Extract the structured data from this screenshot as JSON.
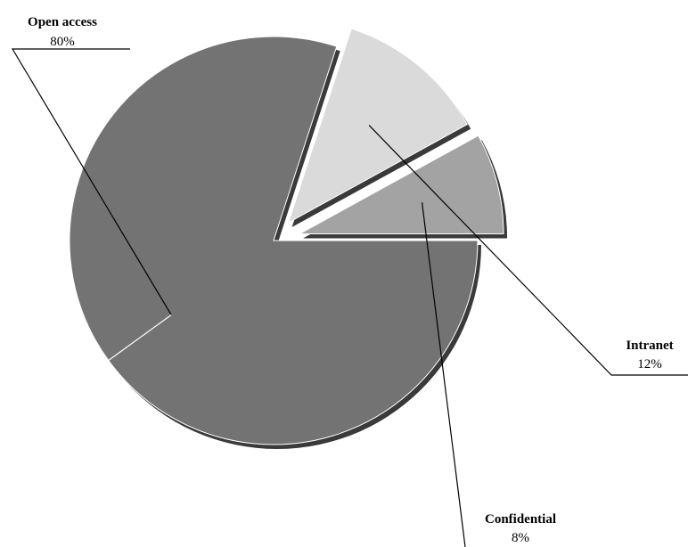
{
  "chart_data": {
    "type": "pie",
    "exploded": true,
    "shadow": true,
    "slices": [
      {
        "label": "Open access",
        "value": 80,
        "value_text": "80%",
        "color": "#737373"
      },
      {
        "label": "Intranet",
        "value": 12,
        "value_text": "12%",
        "color": "#dadada"
      },
      {
        "label": "Confidential",
        "value": 8,
        "value_text": "8%",
        "color": "#a3a3a3"
      }
    ]
  }
}
